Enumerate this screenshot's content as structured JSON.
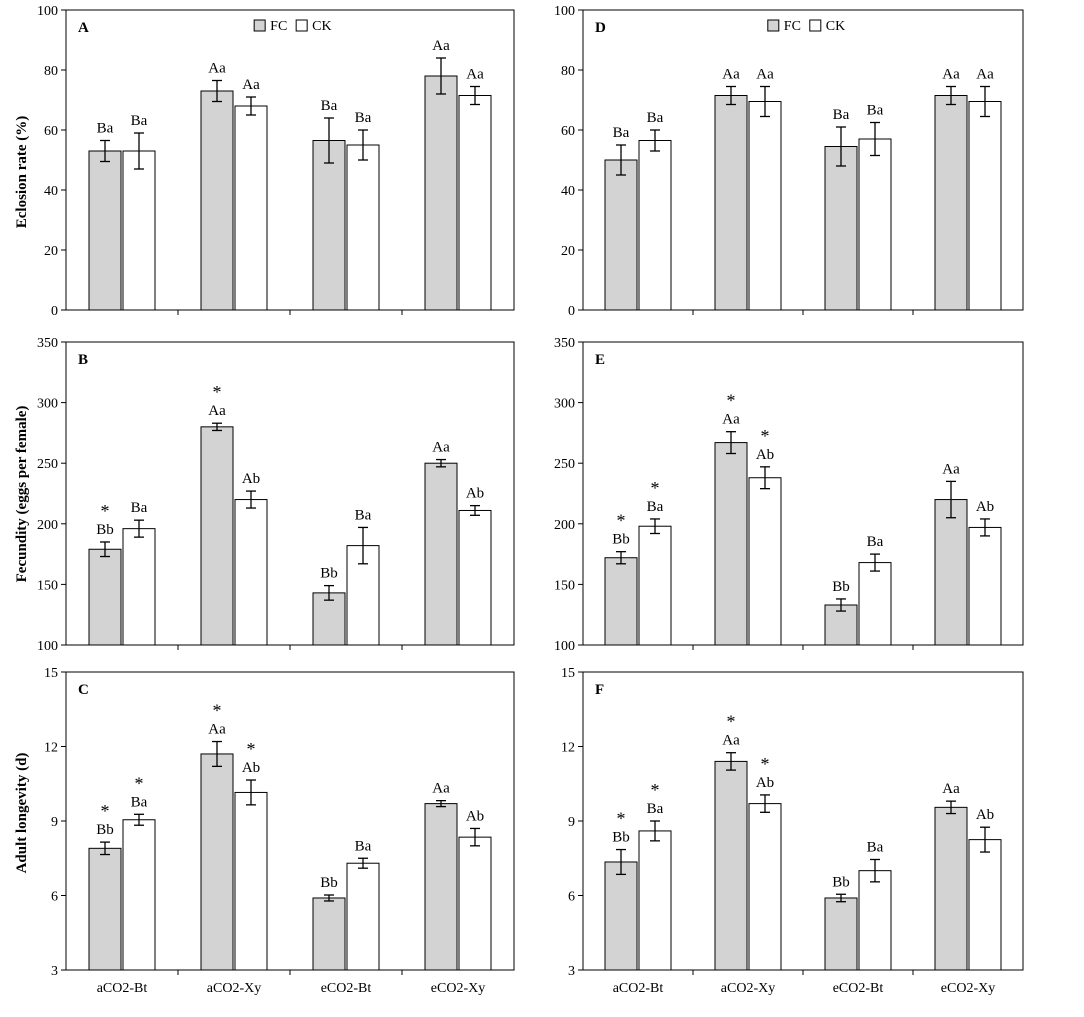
{
  "colors": {
    "fc": "#d3d3d3",
    "ck": "#ffffff",
    "stroke": "#000000"
  },
  "legend_labels": [
    "FC",
    "CK"
  ],
  "categories": [
    "aCO2-Bt",
    "aCO2-Xy",
    "eCO2-Bt",
    "eCO2-Xy"
  ],
  "y_labels": [
    "Eclosion rate (%)",
    "Fecundity (eggs per female)",
    "Adult longevity (d)"
  ],
  "chart_data": [
    {
      "type": "bar",
      "panel": "A",
      "ylabel": "Eclosion rate (%)",
      "ylim": [
        0,
        100
      ],
      "yticks": [
        0,
        20,
        40,
        60,
        80,
        100
      ],
      "legend": "top-center",
      "categories": [
        "aCO2-Bt",
        "aCO2-Xy",
        "eCO2-Bt",
        "eCO2-Xy"
      ],
      "series": [
        {
          "name": "FC",
          "values": [
            53,
            73,
            56.5,
            78
          ],
          "errors": [
            3.5,
            3.5,
            7.5,
            6
          ],
          "labels": [
            "Ba",
            "Aa",
            "Ba",
            "Aa"
          ],
          "stars": [
            false,
            false,
            false,
            false
          ]
        },
        {
          "name": "CK",
          "values": [
            53,
            68,
            55,
            71.5
          ],
          "errors": [
            6,
            3,
            5,
            3
          ],
          "labels": [
            "Ba",
            "Aa",
            "Ba",
            "Aa"
          ],
          "stars": [
            false,
            false,
            false,
            false
          ]
        }
      ]
    },
    {
      "type": "bar",
      "panel": "B",
      "ylabel": "Fecundity (eggs per female)",
      "ylim": [
        100,
        350
      ],
      "yticks": [
        100,
        150,
        200,
        250,
        300,
        350
      ],
      "categories": [
        "aCO2-Bt",
        "aCO2-Xy",
        "eCO2-Bt",
        "eCO2-Xy"
      ],
      "series": [
        {
          "name": "FC",
          "values": [
            179,
            280,
            143,
            250
          ],
          "errors": [
            6,
            3,
            6,
            3
          ],
          "labels": [
            "Bb",
            "Aa",
            "Bb",
            "Aa"
          ],
          "stars": [
            true,
            true,
            false,
            false
          ]
        },
        {
          "name": "CK",
          "values": [
            196,
            220,
            182,
            211
          ],
          "errors": [
            7,
            7,
            15,
            4
          ],
          "labels": [
            "Ba",
            "Ab",
            "Ba",
            "Ab"
          ],
          "stars": [
            false,
            false,
            false,
            false
          ]
        }
      ]
    },
    {
      "type": "bar",
      "panel": "C",
      "ylabel": "Adult longevity (d)",
      "ylim": [
        3,
        15
      ],
      "yticks": [
        3,
        6,
        9,
        12,
        15
      ],
      "categories": [
        "aCO2-Bt",
        "aCO2-Xy",
        "eCO2-Bt",
        "eCO2-Xy"
      ],
      "series": [
        {
          "name": "FC",
          "values": [
            7.9,
            11.7,
            5.9,
            9.7
          ],
          "errors": [
            0.25,
            0.5,
            0.12,
            0.12
          ],
          "labels": [
            "Bb",
            "Aa",
            "Bb",
            "Aa"
          ],
          "stars": [
            true,
            true,
            false,
            false
          ]
        },
        {
          "name": "CK",
          "values": [
            9.05,
            10.15,
            7.3,
            8.35
          ],
          "errors": [
            0.22,
            0.5,
            0.2,
            0.35
          ],
          "labels": [
            "Ba",
            "Ab",
            "Ba",
            "Ab"
          ],
          "stars": [
            true,
            true,
            false,
            false
          ]
        }
      ]
    },
    {
      "type": "bar",
      "panel": "D",
      "ylabel": "",
      "ylim": [
        0,
        100
      ],
      "yticks": [
        0,
        20,
        40,
        60,
        80,
        100
      ],
      "legend": "top-center",
      "categories": [
        "aCO2-Bt",
        "aCO2-Xy",
        "eCO2-Bt",
        "eCO2-Xy"
      ],
      "series": [
        {
          "name": "FC",
          "values": [
            50,
            71.5,
            54.5,
            71.5
          ],
          "errors": [
            5,
            3,
            6.5,
            3
          ],
          "labels": [
            "Ba",
            "Aa",
            "Ba",
            "Aa"
          ],
          "stars": [
            false,
            false,
            false,
            false
          ]
        },
        {
          "name": "CK",
          "values": [
            56.5,
            69.5,
            57,
            69.5
          ],
          "errors": [
            3.5,
            5,
            5.5,
            5
          ],
          "labels": [
            "Ba",
            "Aa",
            "Ba",
            "Aa"
          ],
          "stars": [
            false,
            false,
            false,
            false
          ]
        }
      ]
    },
    {
      "type": "bar",
      "panel": "E",
      "ylabel": "",
      "ylim": [
        100,
        350
      ],
      "yticks": [
        100,
        150,
        200,
        250,
        300,
        350
      ],
      "categories": [
        "aCO2-Bt",
        "aCO2-Xy",
        "eCO2-Bt",
        "eCO2-Xy"
      ],
      "series": [
        {
          "name": "FC",
          "values": [
            172,
            267,
            133,
            220
          ],
          "errors": [
            5,
            9,
            5,
            15
          ],
          "labels": [
            "Bb",
            "Aa",
            "Bb",
            "Aa"
          ],
          "stars": [
            true,
            true,
            false,
            false
          ]
        },
        {
          "name": "CK",
          "values": [
            198,
            238,
            168,
            197
          ],
          "errors": [
            6,
            9,
            7,
            7
          ],
          "labels": [
            "Ba",
            "Ab",
            "Ba",
            "Ab"
          ],
          "stars": [
            true,
            true,
            false,
            false
          ]
        }
      ]
    },
    {
      "type": "bar",
      "panel": "F",
      "ylabel": "",
      "ylim": [
        3,
        15
      ],
      "yticks": [
        3,
        6,
        9,
        12,
        15
      ],
      "categories": [
        "aCO2-Bt",
        "aCO2-Xy",
        "eCO2-Bt",
        "eCO2-Xy"
      ],
      "series": [
        {
          "name": "FC",
          "values": [
            7.35,
            11.4,
            5.9,
            9.55
          ],
          "errors": [
            0.5,
            0.35,
            0.15,
            0.25
          ],
          "labels": [
            "Bb",
            "Aa",
            "Bb",
            "Aa"
          ],
          "stars": [
            true,
            true,
            false,
            false
          ]
        },
        {
          "name": "CK",
          "values": [
            8.6,
            9.7,
            7.0,
            8.25
          ],
          "errors": [
            0.4,
            0.35,
            0.45,
            0.5
          ],
          "labels": [
            "Ba",
            "Ab",
            "Ba",
            "Ab"
          ],
          "stars": [
            true,
            true,
            false,
            false
          ]
        }
      ]
    }
  ]
}
